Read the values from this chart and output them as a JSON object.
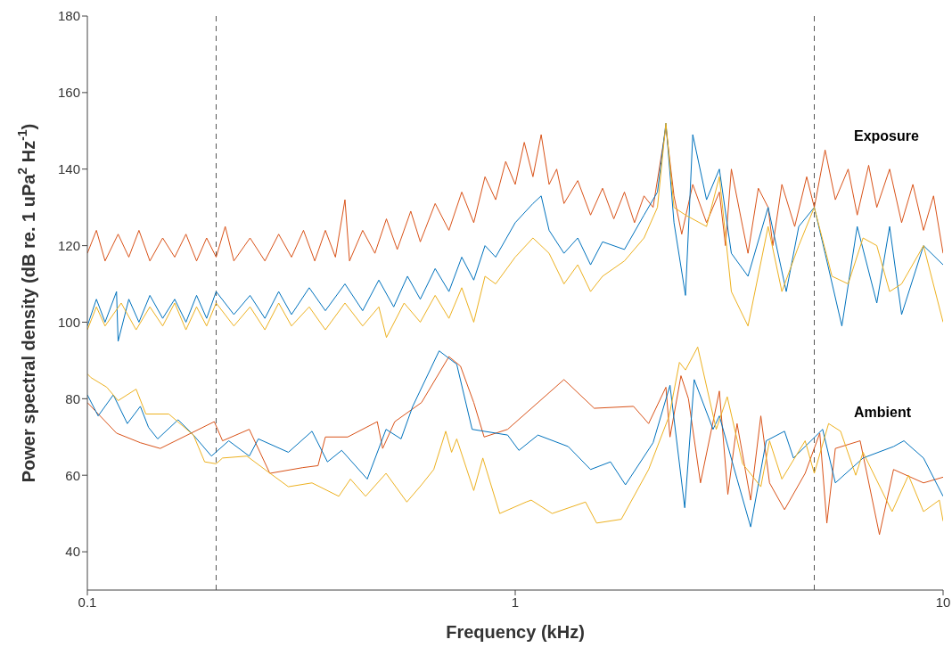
{
  "chart_data": {
    "type": "line",
    "xlabel": "Frequency (kHz)",
    "ylabel": "Power spectral density (dB re. 1 uPa$^{2}$ Hz$^{-1}$)",
    "log": "x",
    "xlim": [
      0.1,
      10
    ],
    "xticks": [
      0.1,
      1,
      10
    ],
    "ylim": [
      30,
      180
    ],
    "yticks": [
      40,
      60,
      80,
      100,
      120,
      140,
      160,
      180
    ],
    "marker": "none",
    "line_style": "solid",
    "ref_lines": [
      {
        "axis": "x",
        "value": 0.2,
        "color": "#555555",
        "line_style": "dashed"
      },
      {
        "axis": "x",
        "value": 5,
        "color": "#555555",
        "line_style": "dashed"
      }
    ],
    "annotations": [
      "Exposure",
      "Ambient"
    ],
    "series": [
      {
        "color": "#d95319",
        "x": [
          0.1,
          0.105,
          0.11,
          0.118,
          0.125,
          0.132,
          0.14,
          0.15,
          0.16,
          0.17,
          0.18,
          0.19,
          0.2,
          0.21,
          0.22,
          0.24,
          0.26,
          0.28,
          0.3,
          0.32,
          0.34,
          0.36,
          0.38,
          0.4,
          0.41,
          0.44,
          0.47,
          0.5,
          0.53,
          0.57,
          0.6,
          0.65,
          0.7,
          0.75,
          0.8,
          0.85,
          0.9,
          0.95,
          1.0,
          1.05,
          1.1,
          1.15,
          1.2,
          1.25,
          1.3,
          1.4,
          1.5,
          1.6,
          1.7,
          1.8,
          1.9,
          2.0,
          2.1,
          2.25,
          2.35,
          2.45,
          2.6,
          2.8,
          3.0,
          3.1,
          3.2,
          3.4,
          3.5,
          3.7,
          3.9,
          4.0,
          4.2,
          4.5,
          4.8,
          5.0,
          5.3,
          5.6,
          6.0,
          6.3,
          6.7,
          7.0,
          7.5,
          8.0,
          8.5,
          9.0,
          9.5,
          10
        ],
        "values": [
          118,
          124,
          116,
          123,
          117,
          124,
          116,
          122,
          117,
          123,
          116,
          122,
          117,
          125,
          116,
          122,
          116,
          123,
          117,
          124,
          116,
          124,
          117,
          132,
          116,
          124,
          118,
          127,
          119,
          129,
          121,
          131,
          124,
          134,
          126,
          138,
          132,
          142,
          136,
          147,
          138,
          149,
          136,
          140,
          131,
          137,
          128,
          135,
          127,
          134,
          126,
          133,
          130,
          151,
          133,
          123,
          136,
          126,
          134,
          120,
          140,
          125,
          118,
          135,
          130,
          120,
          136,
          125,
          138,
          130,
          145,
          132,
          140,
          128,
          141,
          130,
          140,
          126,
          136,
          124,
          133,
          118
        ]
      },
      {
        "color": "#0072bd",
        "x": [
          0.1,
          0.105,
          0.11,
          0.117,
          0.118,
          0.125,
          0.132,
          0.14,
          0.15,
          0.16,
          0.17,
          0.18,
          0.19,
          0.2,
          0.22,
          0.24,
          0.26,
          0.28,
          0.3,
          0.33,
          0.36,
          0.4,
          0.44,
          0.48,
          0.52,
          0.56,
          0.6,
          0.65,
          0.7,
          0.75,
          0.8,
          0.85,
          0.9,
          1.0,
          1.1,
          1.15,
          1.2,
          1.3,
          1.4,
          1.5,
          1.6,
          1.8,
          2.0,
          2.15,
          2.25,
          2.35,
          2.5,
          2.6,
          2.8,
          3.0,
          3.2,
          3.5,
          3.9,
          4.3,
          4.6,
          5.0,
          5.3,
          5.8,
          6.3,
          7.0,
          7.5,
          8.0,
          9.0,
          10
        ],
        "values": [
          99,
          106,
          100,
          108,
          95,
          106,
          100,
          107,
          101,
          106,
          100,
          107,
          101,
          108,
          102,
          107,
          101,
          108,
          102,
          109,
          103,
          110,
          103,
          111,
          104,
          112,
          106,
          114,
          108,
          117,
          111,
          120,
          117,
          126,
          131,
          133,
          124,
          118,
          122,
          115,
          121,
          119,
          128,
          134,
          152,
          126,
          107,
          149,
          132,
          140,
          118,
          112,
          130,
          108,
          125,
          130,
          118,
          99,
          125,
          105,
          125,
          102,
          120,
          115
        ]
      },
      {
        "color": "#edb120",
        "x": [
          0.1,
          0.105,
          0.11,
          0.12,
          0.13,
          0.14,
          0.15,
          0.16,
          0.17,
          0.18,
          0.19,
          0.2,
          0.22,
          0.24,
          0.26,
          0.28,
          0.3,
          0.33,
          0.36,
          0.4,
          0.44,
          0.48,
          0.5,
          0.55,
          0.6,
          0.65,
          0.7,
          0.75,
          0.8,
          0.85,
          0.9,
          1.0,
          1.1,
          1.2,
          1.3,
          1.4,
          1.5,
          1.6,
          1.8,
          2.0,
          2.15,
          2.25,
          2.35,
          2.5,
          2.8,
          3.0,
          3.2,
          3.5,
          3.9,
          4.2,
          4.6,
          5.0,
          5.5,
          6.0,
          6.5,
          7.0,
          7.5,
          8.0,
          9.0,
          10
        ],
        "values": [
          98,
          104,
          99,
          105,
          98,
          104,
          99,
          105,
          98,
          104,
          99,
          105,
          99,
          104,
          98,
          105,
          99,
          104,
          98,
          105,
          99,
          104,
          96,
          105,
          100,
          107,
          101,
          109,
          100,
          112,
          110,
          117,
          122,
          118,
          110,
          115,
          108,
          112,
          116,
          122,
          130,
          152,
          130,
          128,
          125,
          138,
          108,
          99,
          125,
          108,
          120,
          130,
          112,
          110,
          122,
          120,
          108,
          110,
          120,
          100
        ]
      },
      {
        "color": "#d95319",
        "x": [
          0.1,
          0.117,
          0.133,
          0.148,
          0.198,
          0.207,
          0.239,
          0.267,
          0.319,
          0.346,
          0.36,
          0.406,
          0.476,
          0.49,
          0.523,
          0.604,
          0.7,
          0.745,
          0.8,
          0.846,
          0.96,
          1.3,
          1.53,
          1.89,
          2.05,
          2.25,
          2.3,
          2.44,
          2.54,
          2.71,
          3.0,
          3.14,
          3.3,
          3.55,
          3.75,
          3.93,
          4.26,
          4.76,
          5.15,
          5.35,
          5.6,
          6.4,
          7.1,
          7.66,
          9.0,
          10
        ],
        "values": [
          79,
          71,
          68.5,
          67,
          74,
          69,
          72,
          60.5,
          62,
          62.5,
          70,
          70,
          74,
          67,
          74,
          79,
          91,
          88.5,
          79,
          70,
          72,
          85,
          77.5,
          78,
          73.5,
          83,
          70,
          86,
          80,
          58,
          82,
          55,
          73.5,
          53.5,
          75.5,
          58,
          51,
          60.5,
          71,
          47.5,
          67,
          69,
          44.5,
          61.5,
          58,
          59.5
        ]
      },
      {
        "color": "#0072bd",
        "x": [
          0.1,
          0.106,
          0.115,
          0.124,
          0.133,
          0.139,
          0.146,
          0.163,
          0.177,
          0.195,
          0.214,
          0.239,
          0.251,
          0.295,
          0.335,
          0.364,
          0.393,
          0.451,
          0.499,
          0.541,
          0.576,
          0.664,
          0.73,
          0.793,
          0.96,
          1.02,
          1.13,
          1.33,
          1.5,
          1.67,
          1.81,
          2.1,
          2.3,
          2.49,
          2.62,
          2.9,
          3.0,
          3.3,
          3.55,
          3.86,
          4.26,
          4.47,
          5.23,
          5.6,
          6.5,
          7.66,
          8.1,
          9.0,
          10
        ],
        "values": [
          81,
          75.5,
          81,
          73.5,
          78,
          72.5,
          69.5,
          74.5,
          70.5,
          65,
          69,
          65,
          69.5,
          66,
          71.5,
          63.5,
          66.5,
          59,
          72,
          69.5,
          78,
          92.5,
          89,
          72,
          70.5,
          66.5,
          70.5,
          67.5,
          61.5,
          63.5,
          57.5,
          68.5,
          83.5,
          51.5,
          85,
          72,
          75.5,
          59,
          46.5,
          69,
          71.5,
          64.5,
          72,
          58,
          64.5,
          67.5,
          69,
          64.5,
          54.5
        ]
      },
      {
        "color": "#edb120",
        "x": [
          0.1,
          0.102,
          0.111,
          0.118,
          0.13,
          0.137,
          0.155,
          0.177,
          0.188,
          0.2,
          0.207,
          0.236,
          0.26,
          0.295,
          0.335,
          0.387,
          0.412,
          0.447,
          0.499,
          0.558,
          0.604,
          0.645,
          0.688,
          0.71,
          0.73,
          0.8,
          0.84,
          0.92,
          1.06,
          1.09,
          1.22,
          1.46,
          1.55,
          1.77,
          2.05,
          2.29,
          2.42,
          2.5,
          2.67,
          2.95,
          3.13,
          3.4,
          3.75,
          3.93,
          4.2,
          4.76,
          5.0,
          5.4,
          5.76,
          6.25,
          6.5,
          7.6,
          8.3,
          9.0,
          9.8,
          10
        ],
        "values": [
          86.5,
          85.5,
          83,
          79.5,
          82.5,
          76,
          76,
          70.5,
          63.5,
          63,
          64.5,
          65,
          61.5,
          57,
          58,
          54.5,
          59,
          54.5,
          60.5,
          53,
          57.5,
          61.5,
          71.5,
          66,
          69.5,
          56,
          64.5,
          50,
          53,
          53.5,
          50,
          53,
          47.5,
          48.5,
          61.5,
          75.5,
          89.5,
          87.5,
          93.5,
          72,
          80.5,
          63,
          57,
          69,
          59,
          69,
          60.5,
          73.5,
          71.5,
          60,
          66,
          50.5,
          60,
          50.5,
          53.5,
          48
        ]
      }
    ]
  }
}
